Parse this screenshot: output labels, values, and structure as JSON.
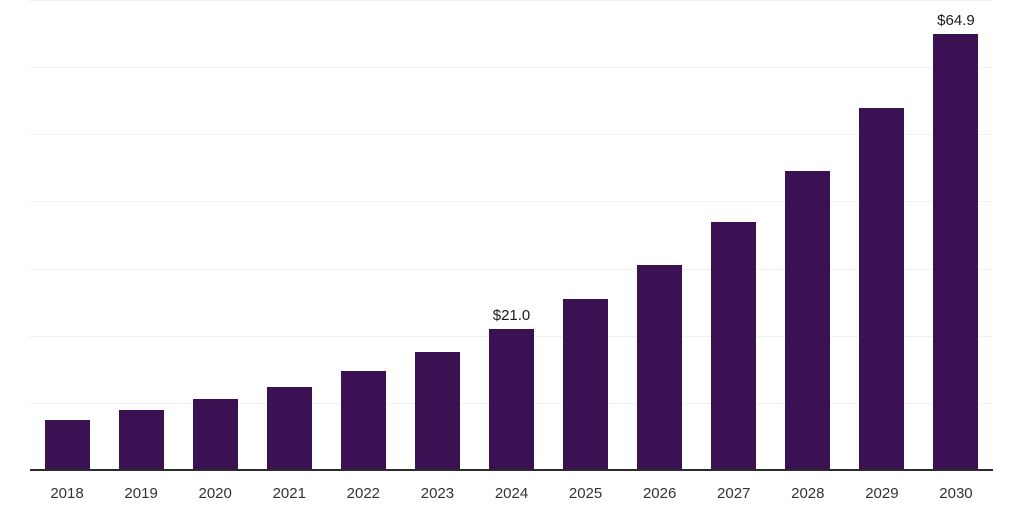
{
  "chart_data": {
    "type": "bar",
    "title": "",
    "xlabel": "",
    "ylabel": "",
    "categories": [
      "2018",
      "2019",
      "2020",
      "2021",
      "2022",
      "2023",
      "2024",
      "2025",
      "2026",
      "2027",
      "2028",
      "2029",
      "2030"
    ],
    "values": [
      7.5,
      8.9,
      10.6,
      12.4,
      14.7,
      17.5,
      21.0,
      25.4,
      30.5,
      36.9,
      44.5,
      53.9,
      64.9
    ],
    "bar_labels": [
      "",
      "",
      "",
      "",
      "",
      "",
      "$21.0",
      "",
      "",
      "",
      "",
      "",
      "$64.9"
    ],
    "ylim": [
      0,
      70
    ],
    "gridline_values": [
      10,
      20,
      30,
      40,
      50,
      60,
      70
    ],
    "grid": "horizontal",
    "legend": "none",
    "colors": {
      "bar": "#3A1253",
      "gridline": "#F0F0F0",
      "axis_line": "#2B2B2B",
      "tick_label": "#333333",
      "data_label": "#1A1A1A",
      "background": "#FFFFFF"
    }
  }
}
